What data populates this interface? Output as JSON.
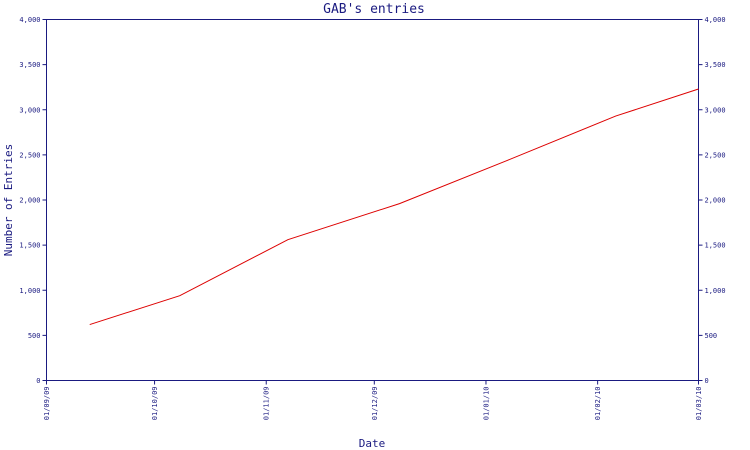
{
  "chart_data": {
    "type": "line",
    "title": "GAB's entries",
    "xlabel": "Date",
    "ylabel": "Number of Entries",
    "x_ticks": [
      "01/09/09",
      "01/10/09",
      "01/11/09",
      "01/12/09",
      "01/01/10",
      "01/02/10",
      "01/03/10"
    ],
    "xlim": [
      "2009-09-01",
      "2010-03-01"
    ],
    "ylim": [
      0,
      4000
    ],
    "y_ticks": [
      0,
      500,
      1000,
      1500,
      2000,
      2500,
      3000,
      3500,
      4000
    ],
    "y_tick_labels": [
      "0",
      "500",
      "1,000",
      "1,500",
      "2,000",
      "2,500",
      "3,000",
      "3,500",
      "4,000"
    ],
    "y_axis_right": true,
    "grid": false,
    "series": [
      {
        "color": "#dd0000",
        "points": [
          {
            "x": "2009-09-13",
            "y": 620
          },
          {
            "x": "2009-10-08",
            "y": 940
          },
          {
            "x": "2009-11-07",
            "y": 1560
          },
          {
            "x": "2009-12-08",
            "y": 1960
          },
          {
            "x": "2010-01-07",
            "y": 2440
          },
          {
            "x": "2010-02-06",
            "y": 2930
          },
          {
            "x": "2010-03-01",
            "y": 3230
          }
        ]
      }
    ]
  }
}
